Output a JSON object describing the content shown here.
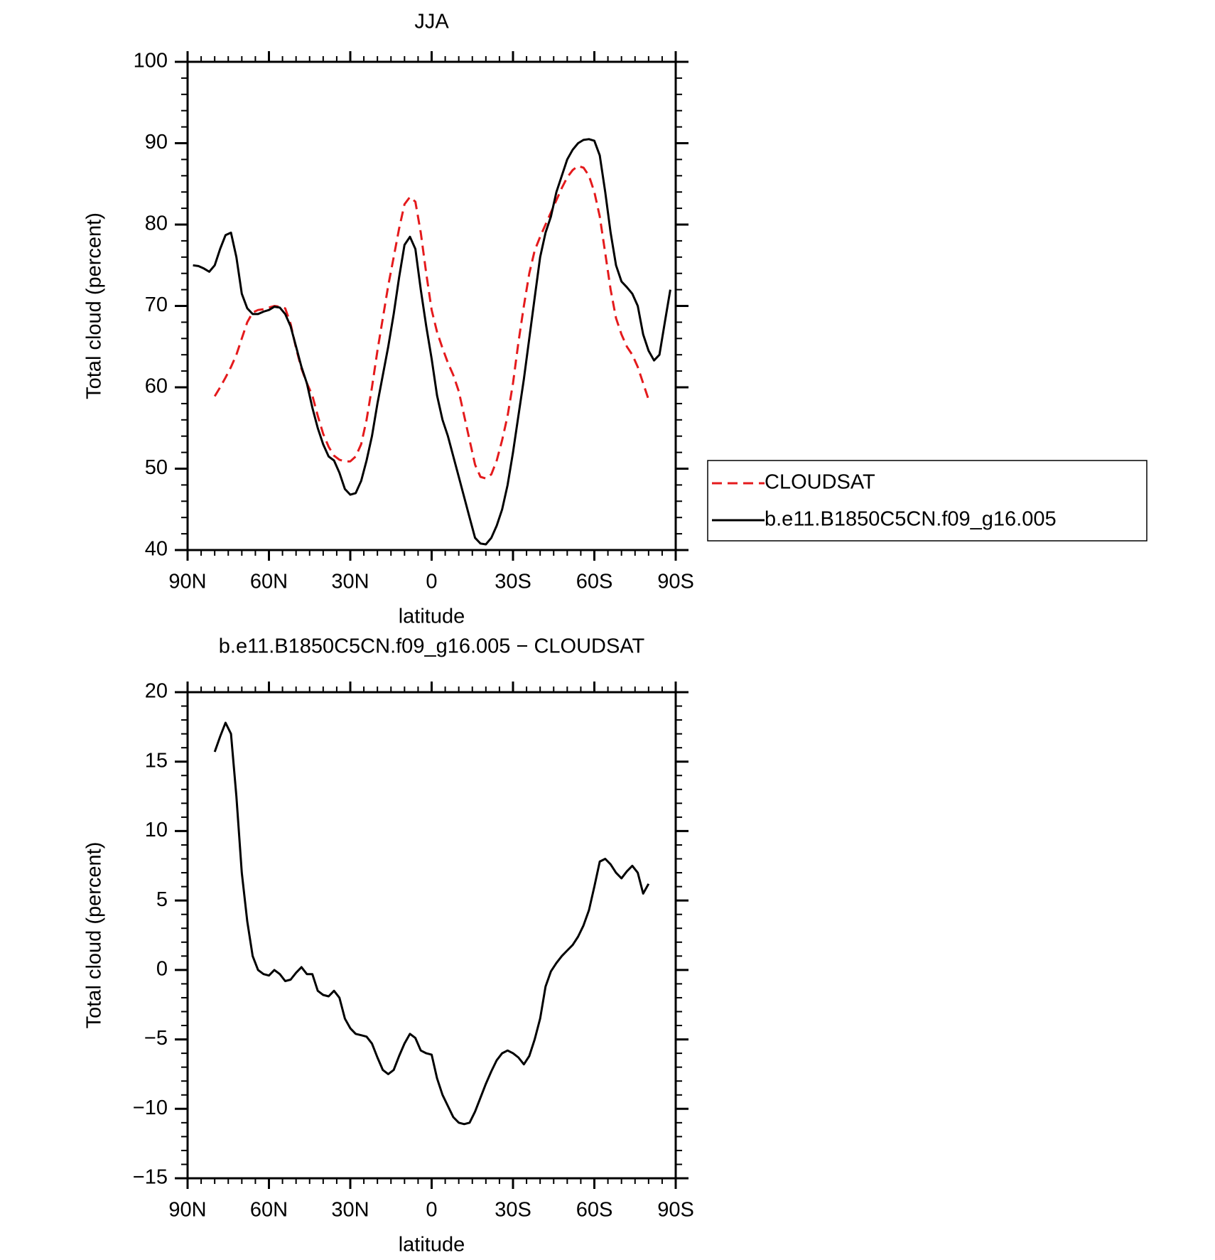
{
  "chart_data": [
    {
      "type": "line",
      "title": "JJA",
      "xlabel": "latitude",
      "ylabel": "Total cloud (percent)",
      "xlim": [
        90,
        -90
      ],
      "xticks": [
        {
          "value": 90,
          "label": "90N"
        },
        {
          "value": 60,
          "label": "60N"
        },
        {
          "value": 30,
          "label": "30N"
        },
        0,
        {
          "value": -30,
          "label": "30S"
        },
        {
          "value": -60,
          "label": "60S"
        },
        {
          "value": -90,
          "label": "90S"
        }
      ],
      "ylim": [
        40,
        100
      ],
      "yticks": [
        40,
        50,
        60,
        70,
        80,
        90,
        100
      ],
      "legend": "right",
      "x": [
        88,
        86,
        84,
        82,
        80,
        78,
        76,
        74,
        72,
        70,
        68,
        66,
        64,
        62,
        60,
        58,
        56,
        54,
        52,
        50,
        48,
        46,
        44,
        42,
        40,
        38,
        36,
        34,
        32,
        30,
        28,
        26,
        24,
        22,
        20,
        18,
        16,
        14,
        12,
        10,
        8,
        6,
        4,
        2,
        0,
        -2,
        -4,
        -6,
        -8,
        -10,
        -12,
        -14,
        -16,
        -18,
        -20,
        -22,
        -24,
        -26,
        -28,
        -30,
        -32,
        -34,
        -36,
        -38,
        -40,
        -42,
        -44,
        -46,
        -48,
        -50,
        -52,
        -54,
        -56,
        -58,
        -60,
        -62,
        -64,
        -66,
        -68,
        -70,
        -72,
        -74,
        -76,
        -78,
        -80,
        -82,
        -84,
        -86,
        -88
      ],
      "series": [
        {
          "name": "CLOUDSAT",
          "color": "#e41a1c",
          "linestyle": "dashed",
          "values": [
            null,
            null,
            null,
            null,
            58.9,
            60,
            61.2,
            62.5,
            64,
            66,
            68,
            69.2,
            69.5,
            69.6,
            69.8,
            70,
            69.9,
            69.7,
            67.8,
            64.8,
            62.3,
            60.5,
            59,
            56.5,
            54.3,
            52.7,
            51.6,
            51.1,
            50.9,
            50.9,
            51.5,
            53,
            56,
            60,
            64.5,
            68.5,
            72.5,
            76,
            79.5,
            82.5,
            83.4,
            82.8,
            79,
            74,
            69.5,
            66.8,
            64.8,
            63,
            61.5,
            59.5,
            56.5,
            53.5,
            50.5,
            49,
            48.8,
            49.3,
            51,
            53.5,
            56.5,
            60.5,
            65.5,
            70,
            74,
            76.8,
            78.5,
            80,
            81.5,
            83,
            84.5,
            85.8,
            86.7,
            87.2,
            87,
            86,
            84,
            81,
            76.5,
            72,
            68.5,
            66.5,
            65,
            64,
            62.5,
            60.5,
            58.5,
            null,
            null,
            null,
            null
          ]
        },
        {
          "name": "b.e11.B1850C5CN.f09_g16.005",
          "color": "#000000",
          "linestyle": "solid",
          "values": [
            75,
            74.9,
            74.6,
            74.2,
            75,
            77,
            78.7,
            79,
            76,
            71.5,
            69.7,
            69,
            69,
            69.3,
            69.5,
            69.9,
            69.8,
            69,
            67.5,
            65,
            62.5,
            60.5,
            57.5,
            55,
            53,
            51.5,
            51,
            49.5,
            47.5,
            46.8,
            47,
            48.5,
            51,
            54,
            58,
            61.5,
            65,
            69,
            73.5,
            77.5,
            78.5,
            77,
            72,
            67.5,
            63.5,
            59,
            56,
            54,
            51.5,
            49,
            46.5,
            44,
            41.5,
            40.8,
            40.7,
            41.5,
            43,
            45,
            48,
            52,
            56.5,
            61,
            66,
            71,
            76,
            79,
            81,
            84,
            86,
            88,
            89.2,
            90,
            90.4,
            90.5,
            90.3,
            88.5,
            84,
            79,
            75,
            73,
            72.3,
            71.5,
            70,
            66.5,
            64.5,
            63.3,
            64,
            68,
            72
          ]
        }
      ]
    },
    {
      "type": "line",
      "title": "b.e11.B1850C5CN.f09_g16.005 − CLOUDSAT",
      "xlabel": "latitude",
      "ylabel": "Total cloud (percent)",
      "xlim": [
        90,
        -90
      ],
      "xticks": [
        {
          "value": 90,
          "label": "90N"
        },
        {
          "value": 60,
          "label": "60N"
        },
        {
          "value": 30,
          "label": "30N"
        },
        0,
        {
          "value": -30,
          "label": "30S"
        },
        {
          "value": -60,
          "label": "60S"
        },
        {
          "value": -90,
          "label": "90S"
        }
      ],
      "ylim": [
        -15,
        20
      ],
      "yticks": [
        {
          "value": -15,
          "label": "−15"
        },
        {
          "value": -10,
          "label": "−10"
        },
        {
          "value": -5,
          "label": "−5"
        },
        0,
        5,
        10,
        15,
        20
      ],
      "x": [
        80,
        78,
        76,
        74,
        72,
        70,
        68,
        66,
        64,
        62,
        60,
        58,
        56,
        54,
        52,
        50,
        48,
        46,
        44,
        42,
        40,
        38,
        36,
        34,
        32,
        30,
        28,
        26,
        24,
        22,
        20,
        18,
        16,
        14,
        12,
        10,
        8,
        6,
        4,
        2,
        0,
        -2,
        -4,
        -6,
        -8,
        -10,
        -12,
        -14,
        -16,
        -18,
        -20,
        -22,
        -24,
        -26,
        -28,
        -30,
        -32,
        -34,
        -36,
        -38,
        -40,
        -42,
        -44,
        -46,
        -48,
        -50,
        -52,
        -54,
        -56,
        -58,
        -60,
        -62,
        -64,
        -66,
        -68,
        -70,
        -72,
        -74,
        -76,
        -78,
        -80
      ],
      "color": "#000000",
      "values": [
        15.7,
        16.8,
        17.8,
        17,
        12.5,
        7,
        3.5,
        1,
        0,
        -0.3,
        -0.4,
        0,
        -0.3,
        -0.8,
        -0.7,
        -0.2,
        0.2,
        -0.3,
        -0.3,
        -1.5,
        -1.8,
        -1.9,
        -1.5,
        -2,
        -3.5,
        -4.2,
        -4.6,
        -4.7,
        -4.8,
        -5.3,
        -6.3,
        -7.2,
        -7.5,
        -7.2,
        -6.2,
        -5.3,
        -4.6,
        -4.9,
        -5.8,
        -6,
        -6.1,
        -7.8,
        -9,
        -9.8,
        -10.6,
        -11,
        -11.1,
        -11,
        -10.2,
        -9.2,
        -8.2,
        -7.3,
        -6.5,
        -6,
        -5.8,
        -6,
        -6.3,
        -6.8,
        -6.2,
        -5,
        -3.5,
        -1.2,
        -0.1,
        0.5,
        1,
        1.4,
        1.8,
        2.4,
        3.2,
        4.3,
        6,
        7.8,
        8,
        7.6,
        7,
        6.6,
        7.1,
        7.5,
        7,
        5.5,
        6.2
      ]
    }
  ]
}
